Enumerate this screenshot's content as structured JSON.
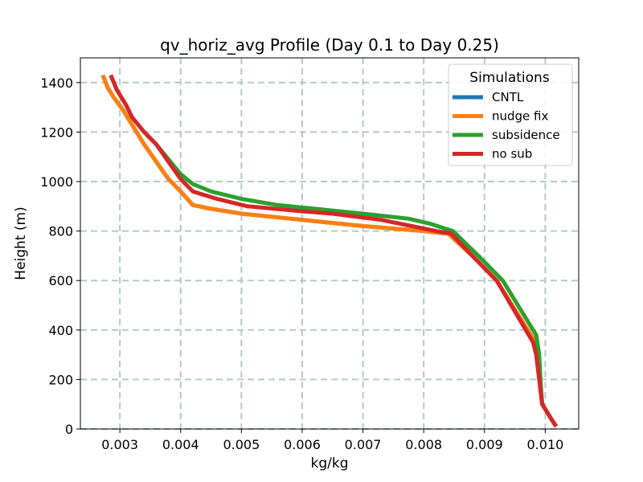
{
  "chart_data": {
    "type": "line",
    "title": "qv_horiz_avg Profile (Day 0.1 to Day 0.25)",
    "xlabel": "kg/kg",
    "ylabel": "Height (m)",
    "xlim": [
      0.00235,
      0.01055
    ],
    "ylim": [
      0,
      1500
    ],
    "xticks": [
      0.003,
      0.004,
      0.005,
      0.006,
      0.007,
      0.008,
      0.009,
      0.01
    ],
    "xtick_labels": [
      "0.003",
      "0.004",
      "0.005",
      "0.006",
      "0.007",
      "0.008",
      "0.009",
      "0.010"
    ],
    "yticks": [
      0,
      200,
      400,
      600,
      800,
      1000,
      1200,
      1400
    ],
    "ytick_labels": [
      "0",
      "200",
      "400",
      "600",
      "800",
      "1000",
      "1200",
      "1400"
    ],
    "grid": true,
    "legend": {
      "title": "Simulations",
      "position": "top-right"
    },
    "series": [
      {
        "name": "CNTL",
        "color": "#1f77b4",
        "x": [
          0.01018,
          0.0101,
          0.00995,
          0.0099,
          0.00988,
          0.00984,
          0.0092,
          0.0088,
          0.0084,
          0.0083,
          0.008,
          0.007,
          0.006,
          0.005,
          0.0045,
          0.0042,
          0.004,
          0.0038,
          0.0036,
          0.0034,
          0.0032,
          0.00305,
          0.0029,
          0.0028,
          0.00272
        ],
        "y": [
          10,
          40,
          100,
          200,
          300,
          350,
          600,
          700,
          790,
          792,
          800,
          820,
          845,
          870,
          890,
          905,
          960,
          1010,
          1080,
          1150,
          1230,
          1290,
          1340,
          1380,
          1430
        ]
      },
      {
        "name": "nudge fix",
        "color": "#ff7f0e",
        "x": [
          0.01018,
          0.0101,
          0.00995,
          0.0099,
          0.00988,
          0.00984,
          0.0092,
          0.0088,
          0.0084,
          0.0083,
          0.008,
          0.007,
          0.006,
          0.005,
          0.0045,
          0.0042,
          0.004,
          0.0038,
          0.0036,
          0.0034,
          0.0032,
          0.00305,
          0.0029,
          0.0028,
          0.00272
        ],
        "y": [
          10,
          40,
          100,
          200,
          300,
          350,
          600,
          700,
          790,
          792,
          800,
          820,
          845,
          870,
          890,
          905,
          960,
          1010,
          1080,
          1150,
          1230,
          1290,
          1340,
          1380,
          1430
        ]
      },
      {
        "name": "subsidence",
        "color": "#2ca02c",
        "x": [
          0.01018,
          0.0101,
          0.00995,
          0.00992,
          0.0099,
          0.00985,
          0.0093,
          0.0089,
          0.00848,
          0.0081,
          0.00775,
          0.007,
          0.006,
          0.0056,
          0.005,
          0.0045,
          0.0042,
          0.004,
          0.0038,
          0.0036,
          0.0034,
          0.0032,
          0.0031,
          0.00295,
          0.00285
        ],
        "y": [
          10,
          40,
          100,
          200,
          300,
          380,
          600,
          700,
          800,
          830,
          850,
          870,
          895,
          905,
          930,
          960,
          990,
          1030,
          1090,
          1150,
          1200,
          1260,
          1310,
          1370,
          1430
        ]
      },
      {
        "name": "no sub",
        "color": "#d62728",
        "x": [
          0.01018,
          0.0101,
          0.00995,
          0.0099,
          0.00985,
          0.0098,
          0.0092,
          0.0088,
          0.00845,
          0.0082,
          0.008,
          0.0073,
          0.0065,
          0.006,
          0.0051,
          0.0046,
          0.0042,
          0.004,
          0.0038,
          0.0036,
          0.0034,
          0.0032,
          0.0031,
          0.00295,
          0.00285
        ],
        "y": [
          10,
          40,
          100,
          200,
          300,
          350,
          600,
          700,
          790,
          800,
          810,
          845,
          870,
          880,
          900,
          930,
          960,
          1010,
          1080,
          1150,
          1200,
          1260,
          1310,
          1370,
          1430
        ]
      }
    ]
  }
}
